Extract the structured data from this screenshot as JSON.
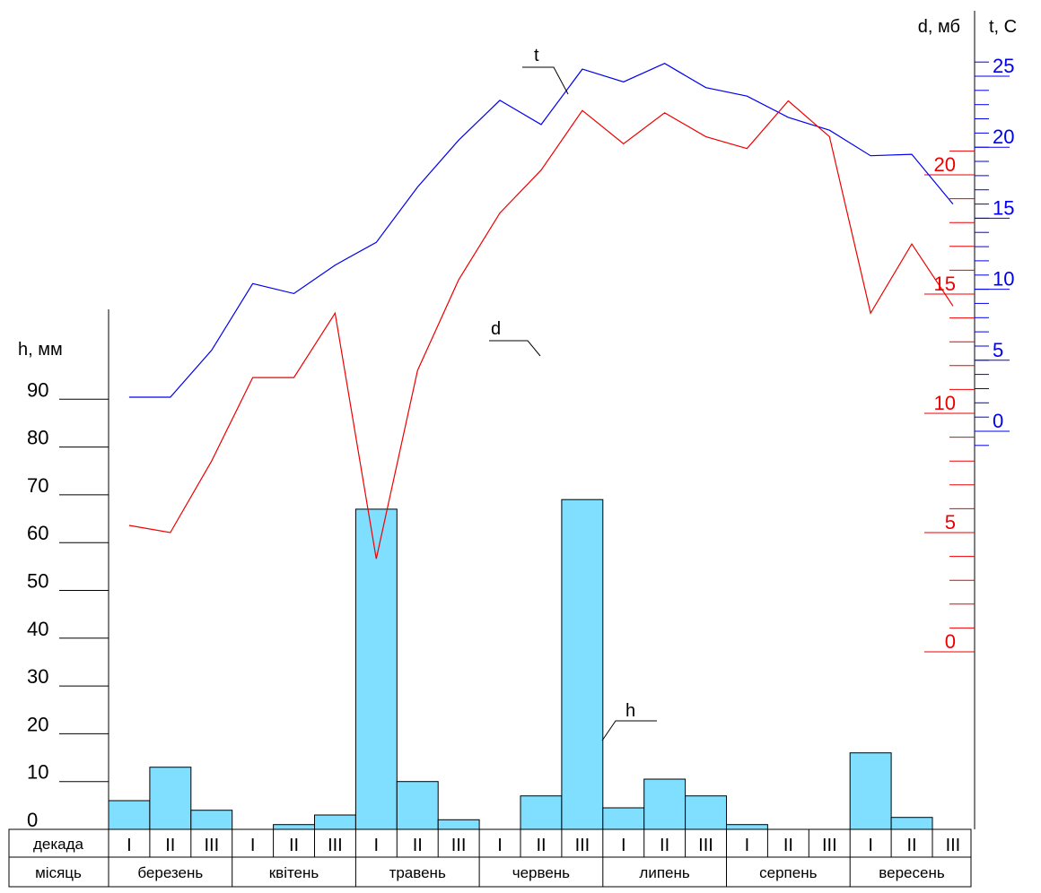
{
  "chart_data": {
    "type": "bar+line",
    "axes": {
      "h": {
        "title": "h, мм",
        "ticks": [
          "0",
          "10",
          "20",
          "30",
          "40",
          "50",
          "60",
          "70",
          "80",
          "90"
        ],
        "range": [
          0,
          90
        ]
      },
      "d": {
        "title": "d, мб",
        "ticks": [
          "0",
          "5",
          "10",
          "15",
          "20"
        ],
        "range": [
          0,
          20
        ]
      },
      "t": {
        "title": "t, С",
        "ticks": [
          "0",
          "5",
          "10",
          "15",
          "20",
          "25"
        ],
        "range": [
          0,
          25
        ]
      }
    },
    "table": {
      "row_labels": {
        "decade": "декада",
        "month": "місяць"
      },
      "decades": [
        "I",
        "II",
        "III",
        "I",
        "II",
        "III",
        "I",
        "II",
        "III",
        "I",
        "II",
        "III",
        "I",
        "II",
        "III",
        "I",
        "II",
        "III",
        "I",
        "II",
        "III"
      ],
      "months": [
        "березень",
        "квітень",
        "травень",
        "червень",
        "липень",
        "серпень",
        "вересень"
      ]
    },
    "series": [
      {
        "name": "h",
        "kind": "bar",
        "color": "#80dfff",
        "values": [
          6,
          13,
          4,
          0,
          1,
          3,
          67,
          10,
          2,
          0,
          7,
          69,
          4.5,
          10.5,
          7,
          1,
          0,
          0,
          16,
          2.5,
          0
        ]
      },
      {
        "name": "t",
        "kind": "line",
        "color": "#0000ee",
        "values": [
          2.4,
          2.4,
          5.7,
          10.4,
          9.7,
          11.7,
          13.3,
          17.2,
          20.5,
          23.3,
          21.6,
          25.5,
          24.6,
          25.9,
          24.2,
          23.6,
          22.1,
          21.2,
          19.4,
          19.5,
          16
        ]
      },
      {
        "name": "d",
        "kind": "line",
        "color": "#ee0000",
        "values": [
          5.3,
          5.0,
          8.0,
          11.5,
          11.5,
          14.2,
          3.9,
          11.8,
          15.6,
          18.4,
          20.2,
          22.7,
          21.3,
          22.6,
          21.6,
          21.1,
          23.1,
          21.6,
          14.2,
          17.1,
          14.5
        ]
      }
    ]
  }
}
